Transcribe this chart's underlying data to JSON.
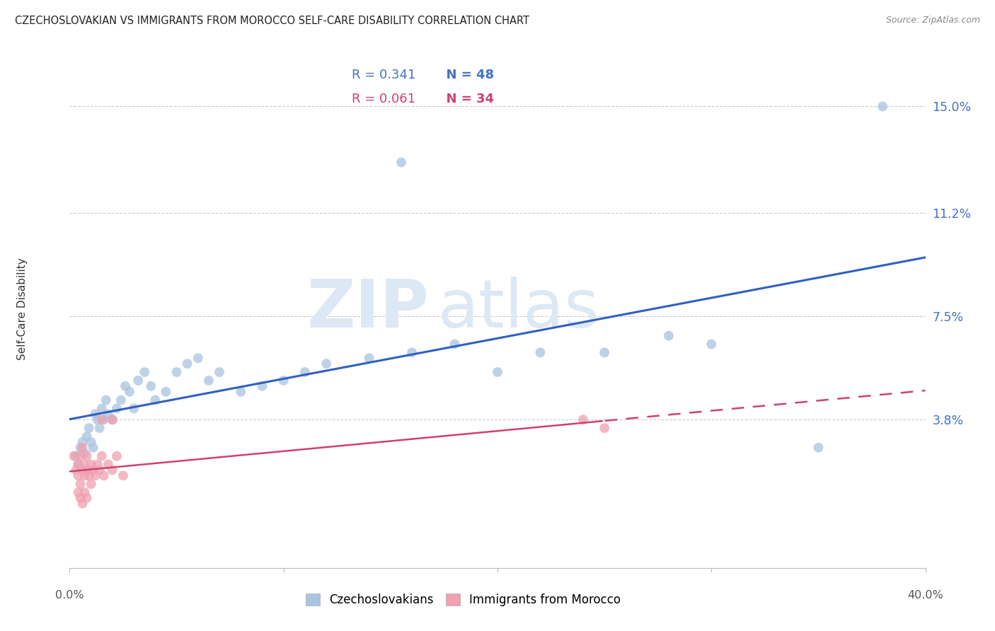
{
  "title": "CZECHOSLOVAKIAN VS IMMIGRANTS FROM MOROCCO SELF-CARE DISABILITY CORRELATION CHART",
  "source": "Source: ZipAtlas.com",
  "ylabel": "Self-Care Disability",
  "ytick_labels": [
    "15.0%",
    "11.2%",
    "7.5%",
    "3.8%"
  ],
  "ytick_values": [
    0.15,
    0.112,
    0.075,
    0.038
  ],
  "xmin": 0.0,
  "xmax": 0.4,
  "ymin": -0.015,
  "ymax": 0.17,
  "color_blue": "#a8c4e0",
  "color_pink": "#f0a0b0",
  "color_blue_line": "#3060c0",
  "color_pink_line": "#d04070",
  "color_axis_label": "#4472c4",
  "watermark_zip": "ZIP",
  "watermark_atlas": "atlas",
  "blue_scatter_x": [
    0.003,
    0.004,
    0.005,
    0.006,
    0.007,
    0.008,
    0.009,
    0.01,
    0.011,
    0.012,
    0.013,
    0.014,
    0.015,
    0.016,
    0.017,
    0.018,
    0.02,
    0.022,
    0.024,
    0.026,
    0.028,
    0.03,
    0.032,
    0.035,
    0.038,
    0.04,
    0.045,
    0.05,
    0.055,
    0.06,
    0.065,
    0.07,
    0.08,
    0.09,
    0.1,
    0.11,
    0.12,
    0.14,
    0.16,
    0.18,
    0.2,
    0.22,
    0.25,
    0.28,
    0.3,
    0.35,
    0.155,
    0.38
  ],
  "blue_scatter_y": [
    0.025,
    0.022,
    0.028,
    0.03,
    0.026,
    0.032,
    0.035,
    0.03,
    0.028,
    0.04,
    0.038,
    0.035,
    0.042,
    0.038,
    0.045,
    0.04,
    0.038,
    0.042,
    0.045,
    0.05,
    0.048,
    0.042,
    0.052,
    0.055,
    0.05,
    0.045,
    0.048,
    0.055,
    0.058,
    0.06,
    0.052,
    0.055,
    0.048,
    0.05,
    0.052,
    0.055,
    0.058,
    0.06,
    0.062,
    0.065,
    0.055,
    0.062,
    0.062,
    0.068,
    0.065,
    0.028,
    0.13,
    0.15
  ],
  "pink_scatter_x": [
    0.002,
    0.003,
    0.004,
    0.004,
    0.005,
    0.005,
    0.006,
    0.006,
    0.007,
    0.007,
    0.008,
    0.008,
    0.009,
    0.01,
    0.01,
    0.011,
    0.012,
    0.013,
    0.014,
    0.015,
    0.016,
    0.018,
    0.02,
    0.022,
    0.025,
    0.004,
    0.005,
    0.006,
    0.007,
    0.008,
    0.015,
    0.02,
    0.24,
    0.25
  ],
  "pink_scatter_y": [
    0.025,
    0.02,
    0.018,
    0.022,
    0.025,
    0.015,
    0.02,
    0.028,
    0.018,
    0.022,
    0.025,
    0.02,
    0.018,
    0.022,
    0.015,
    0.02,
    0.018,
    0.022,
    0.02,
    0.025,
    0.018,
    0.022,
    0.02,
    0.025,
    0.018,
    0.012,
    0.01,
    0.008,
    0.012,
    0.01,
    0.038,
    0.038,
    0.038,
    0.035
  ]
}
